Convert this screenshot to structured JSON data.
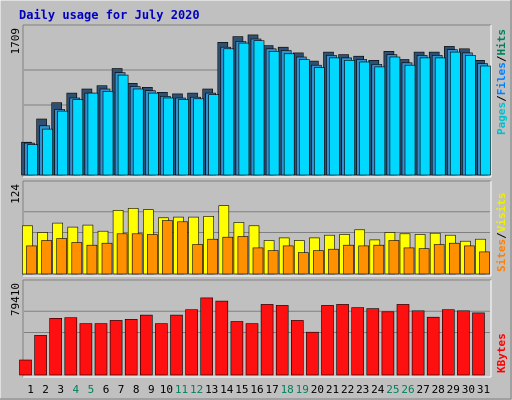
{
  "chart_data": {
    "type": "bar",
    "title": "Daily usage for July 2020",
    "x": [
      "1",
      "2",
      "3",
      "4",
      "5",
      "6",
      "7",
      "8",
      "9",
      "10",
      "11",
      "12",
      "13",
      "14",
      "15",
      "16",
      "17",
      "18",
      "19",
      "20",
      "21",
      "22",
      "23",
      "24",
      "25",
      "26",
      "27",
      "28",
      "29",
      "30",
      "31"
    ],
    "weekend_days": [
      "4",
      "5",
      "11",
      "12",
      "18",
      "19",
      "25",
      "26"
    ],
    "panels": [
      {
        "name": "hits-files-pages",
        "max_label": "1709",
        "ymax": 1709,
        "legend": [
          {
            "text": "Pages",
            "color": "#00c0d0"
          },
          {
            "text": "/",
            "color": "#000000"
          },
          {
            "text": "Files",
            "color": "#0080ff"
          },
          {
            "text": "/",
            "color": "#000000"
          },
          {
            "text": "Hits",
            "color": "#00805c"
          }
        ],
        "series": [
          {
            "name": "Hits",
            "color": "#305070",
            "values": [
              400,
              684,
              882,
              1000,
              1050,
              1090,
              1300,
              1120,
              1070,
              1010,
              990,
              1000,
              1050,
              1620,
              1690,
              1710,
              1580,
              1560,
              1490,
              1390,
              1500,
              1470,
              1450,
              1400,
              1510,
              1410,
              1500,
              1500,
              1570,
              1540,
              1400
            ]
          },
          {
            "name": "Files",
            "color": "#3090d0",
            "values": [
              390,
              600,
              800,
              940,
              1000,
              1050,
              1250,
              1080,
              1030,
              960,
              940,
              950,
              1000,
              1560,
              1630,
              1660,
              1540,
              1520,
              1440,
              1340,
              1460,
              1430,
              1410,
              1350,
              1470,
              1370,
              1460,
              1460,
              1530,
              1490,
              1360
            ]
          },
          {
            "name": "Pages",
            "color": "#00d8ff",
            "values": [
              370,
              560,
              780,
              920,
              1000,
              1020,
              1220,
              1050,
              1000,
              940,
              920,
              930,
              980,
              1540,
              1610,
              1640,
              1510,
              1480,
              1410,
              1310,
              1430,
              1400,
              1380,
              1320,
              1440,
              1340,
              1430,
              1430,
              1500,
              1460,
              1330
            ]
          }
        ]
      },
      {
        "name": "visits-sites",
        "max_label": "124",
        "ymax": 124,
        "legend": [
          {
            "text": "Sites",
            "color": "#ff8000"
          },
          {
            "text": "/",
            "color": "#000000"
          },
          {
            "text": "Visits",
            "color": "#f0f000"
          }
        ],
        "series": [
          {
            "name": "Visits",
            "color": "#ffff00",
            "values": [
              72,
              62,
              76,
              70,
              73,
              64,
              95,
              98,
              96,
              84,
              85,
              85,
              86,
              102,
              77,
              72,
              50,
              54,
              50,
              54,
              58,
              59,
              66,
              51,
              62,
              60,
              59,
              61,
              58,
              49,
              52
            ]
          },
          {
            "name": "Sites",
            "color": "#ff9000",
            "values": [
              42,
              50,
              53,
              47,
              43,
              46,
              60,
              60,
              59,
              80,
              78,
              44,
              52,
              55,
              56,
              39,
              35,
              42,
              32,
              35,
              37,
              43,
              42,
              43,
              50,
              39,
              38,
              44,
              46,
              42,
              33
            ]
          }
        ]
      },
      {
        "name": "kbytes",
        "max_label": "79410",
        "ymax": 79410,
        "legend": [
          {
            "text": "KBytes",
            "color": "#ff0000"
          }
        ],
        "series": [
          {
            "name": "KBytes",
            "color": "#ff1010",
            "values": [
              14000,
              37000,
              53000,
              53500,
              48000,
              48000,
              51000,
              52000,
              56000,
              48000,
              56000,
              61000,
              72000,
              69000,
              50000,
              48000,
              66000,
              65000,
              51000,
              40000,
              65000,
              66000,
              63000,
              62000,
              59000,
              66000,
              60000,
              54000,
              61000,
              60000,
              58000
            ]
          }
        ]
      }
    ]
  }
}
